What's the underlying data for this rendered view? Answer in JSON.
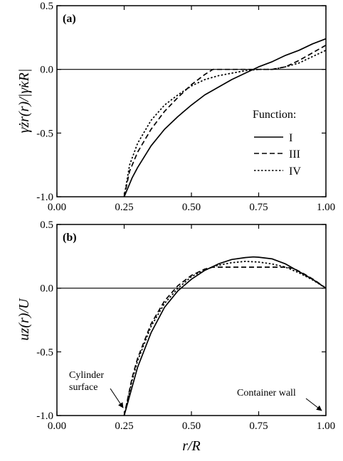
{
  "chart_data": [
    {
      "type": "line",
      "panel": "(a)",
      "xlabel": "",
      "ylabel": "γ̇zr(r)/|γ̇κR|",
      "xlim": [
        0.25,
        1.0
      ],
      "ylim": [
        -1.0,
        0.5
      ],
      "axis_range_shown": {
        "x": [
          0.0,
          1.0
        ],
        "y": [
          -1.0,
          0.5
        ]
      },
      "xticks": [
        "0.00",
        "0.25",
        "0.50",
        "0.75",
        "1.00"
      ],
      "yticks": [
        "-1.0",
        "-0.5",
        "0.0",
        "0.5"
      ],
      "legend": {
        "title": "Function:",
        "placement": "right",
        "entries": [
          "I",
          "III",
          "IV"
        ]
      },
      "series": [
        {
          "name": "I",
          "style": "solid",
          "x": [
            0.25,
            0.28,
            0.3,
            0.35,
            0.4,
            0.45,
            0.5,
            0.55,
            0.6,
            0.65,
            0.7,
            0.75,
            0.8,
            0.85,
            0.9,
            0.95,
            1.0
          ],
          "y": [
            -1.0,
            -0.85,
            -0.77,
            -0.6,
            -0.47,
            -0.37,
            -0.28,
            -0.2,
            -0.14,
            -0.08,
            -0.03,
            0.02,
            0.06,
            0.11,
            0.15,
            0.2,
            0.24
          ]
        },
        {
          "name": "III",
          "style": "dashed",
          "x": [
            0.25,
            0.27,
            0.3,
            0.35,
            0.4,
            0.45,
            0.5,
            0.55,
            0.58,
            0.62,
            0.67,
            0.72,
            0.75,
            0.8,
            0.85,
            0.9,
            0.95,
            1.0
          ],
          "y": [
            -1.0,
            -0.8,
            -0.65,
            -0.47,
            -0.33,
            -0.22,
            -0.12,
            -0.04,
            0.0,
            0.0,
            0.0,
            0.0,
            0.0,
            0.0,
            0.02,
            0.07,
            0.13,
            0.19
          ]
        },
        {
          "name": "IV",
          "style": "dotted",
          "x": [
            0.25,
            0.27,
            0.3,
            0.35,
            0.4,
            0.45,
            0.5,
            0.55,
            0.6,
            0.65,
            0.7,
            0.75,
            0.8,
            0.85,
            0.9,
            0.95,
            1.0
          ],
          "y": [
            -1.0,
            -0.75,
            -0.58,
            -0.4,
            -0.28,
            -0.2,
            -0.13,
            -0.08,
            -0.05,
            -0.03,
            -0.01,
            0.0,
            0.0,
            0.02,
            0.05,
            0.1,
            0.15
          ]
        }
      ]
    },
    {
      "type": "line",
      "panel": "(b)",
      "xlabel": "r/R",
      "ylabel": "uz(r)/U",
      "xlim": [
        0.25,
        1.0
      ],
      "ylim": [
        -1.0,
        0.5
      ],
      "axis_range_shown": {
        "x": [
          0.0,
          1.0
        ],
        "y": [
          -1.0,
          0.5
        ]
      },
      "xticks": [
        "0.00",
        "0.25",
        "0.50",
        "0.75",
        "1.00"
      ],
      "yticks": [
        "-1.0",
        "-0.5",
        "0.0",
        "0.5"
      ],
      "annotations": [
        {
          "text_lines": [
            "Cylinder",
            "surface"
          ],
          "points_to": [
            0.25,
            -1.0
          ]
        },
        {
          "text_lines": [
            "Container wall"
          ],
          "points_to": [
            1.0,
            -1.0
          ]
        }
      ],
      "series": [
        {
          "name": "I",
          "style": "solid",
          "x": [
            0.25,
            0.3,
            0.35,
            0.4,
            0.45,
            0.5,
            0.55,
            0.6,
            0.65,
            0.7,
            0.73,
            0.75,
            0.8,
            0.85,
            0.9,
            0.95,
            1.0
          ],
          "y": [
            -1.0,
            -0.62,
            -0.35,
            -0.15,
            -0.02,
            0.07,
            0.14,
            0.19,
            0.225,
            0.24,
            0.245,
            0.243,
            0.23,
            0.19,
            0.13,
            0.07,
            0.0
          ]
        },
        {
          "name": "III",
          "style": "dashed",
          "x": [
            0.25,
            0.28,
            0.3,
            0.35,
            0.4,
            0.45,
            0.5,
            0.55,
            0.58,
            0.65,
            0.75,
            0.85,
            0.88,
            0.92,
            0.96,
            1.0
          ],
          "y": [
            -1.0,
            -0.7,
            -0.55,
            -0.28,
            -0.1,
            0.02,
            0.1,
            0.15,
            0.165,
            0.165,
            0.165,
            0.165,
            0.155,
            0.11,
            0.06,
            0.0
          ]
        },
        {
          "name": "IV",
          "style": "dotted",
          "x": [
            0.25,
            0.28,
            0.3,
            0.35,
            0.4,
            0.45,
            0.5,
            0.55,
            0.6,
            0.65,
            0.7,
            0.75,
            0.8,
            0.85,
            0.9,
            0.95,
            1.0
          ],
          "y": [
            -1.0,
            -0.72,
            -0.57,
            -0.3,
            -0.12,
            0.0,
            0.09,
            0.145,
            0.18,
            0.2,
            0.21,
            0.205,
            0.19,
            0.165,
            0.12,
            0.065,
            0.0
          ]
        }
      ]
    }
  ]
}
